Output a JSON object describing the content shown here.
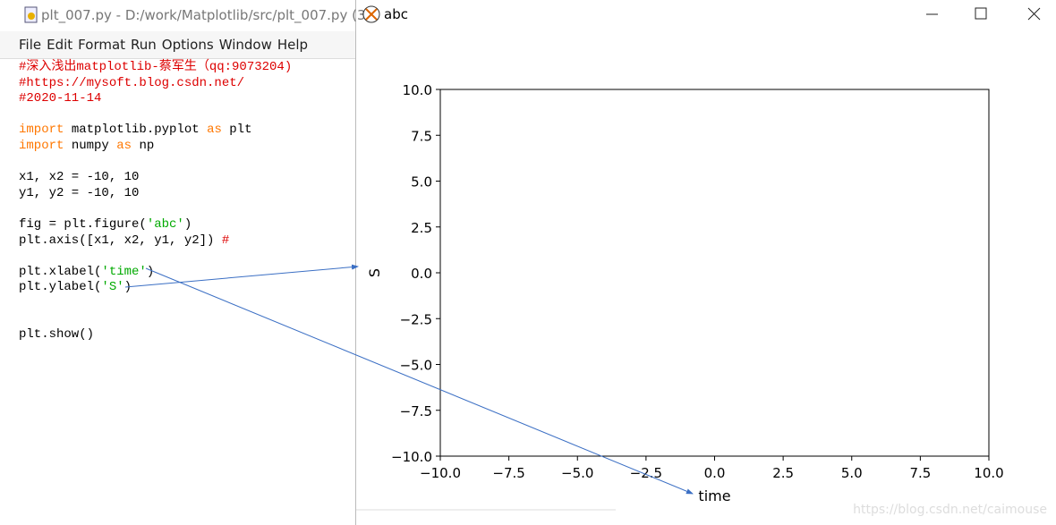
{
  "editor": {
    "title": "plt_007.py - D:/work/Matplotlib/src/plt_007.py (3",
    "menu": [
      "File",
      "Edit",
      "Format",
      "Run",
      "Options",
      "Window",
      "Help"
    ],
    "lines": [
      [
        {
          "text": "#深入浅出matplotlib-蔡军生（qq:9073204)",
          "color": "#dd0000"
        }
      ],
      [
        {
          "text": "#https://mysoft.blog.csdn.net/",
          "color": "#dd0000"
        }
      ],
      [
        {
          "text": "#2020-11-14",
          "color": "#dd0000"
        }
      ],
      null,
      [
        {
          "text": "import",
          "color": "#ff7700"
        },
        {
          "text": " matplotlib.pyplot ",
          "color": "#000000"
        },
        {
          "text": "as",
          "color": "#ff7700"
        },
        {
          "text": " plt",
          "color": "#000000"
        }
      ],
      [
        {
          "text": "import",
          "color": "#ff7700"
        },
        {
          "text": " numpy ",
          "color": "#000000"
        },
        {
          "text": "as",
          "color": "#ff7700"
        },
        {
          "text": " np",
          "color": "#000000"
        }
      ],
      null,
      [
        {
          "text": "x1, x2 = -10, 10",
          "color": "#000000"
        }
      ],
      [
        {
          "text": "y1, y2 = -10, 10",
          "color": "#000000"
        }
      ],
      null,
      [
        {
          "text": "fig = plt.figure(",
          "color": "#000000"
        },
        {
          "text": "'abc'",
          "color": "#00aa00"
        },
        {
          "text": ")",
          "color": "#000000"
        }
      ],
      [
        {
          "text": "plt.axis([x1, x2, y1, y2]) ",
          "color": "#000000"
        },
        {
          "text": "#",
          "color": "#dd0000"
        }
      ],
      null,
      [
        {
          "text": "plt.xlabel(",
          "color": "#000000"
        },
        {
          "text": "'time'",
          "color": "#00aa00"
        },
        {
          "text": ")",
          "color": "#000000"
        }
      ],
      [
        {
          "text": "plt.ylabel(",
          "color": "#000000"
        },
        {
          "text": "'S'",
          "color": "#00aa00"
        },
        {
          "text": ")",
          "color": "#000000"
        }
      ],
      null,
      null,
      [
        {
          "text": "plt.show()",
          "color": "#000000"
        }
      ]
    ]
  },
  "figure_window": {
    "title": "abc"
  },
  "chart_data": {
    "type": "line",
    "xlabel": "time",
    "ylabel": "S",
    "xlim": [
      -10,
      10
    ],
    "ylim": [
      -10,
      10
    ],
    "xticks": [
      {
        "value": -10,
        "label": "−10.0"
      },
      {
        "value": -7.5,
        "label": "−7.5"
      },
      {
        "value": -5,
        "label": "−5.0"
      },
      {
        "value": -2.5,
        "label": "−2.5"
      },
      {
        "value": 0,
        "label": "0.0"
      },
      {
        "value": 2.5,
        "label": "2.5"
      },
      {
        "value": 5,
        "label": "5.0"
      },
      {
        "value": 7.5,
        "label": "7.5"
      },
      {
        "value": 10,
        "label": "10.0"
      }
    ],
    "yticks": [
      {
        "value": -10,
        "label": "−10.0"
      },
      {
        "value": -7.5,
        "label": "−7.5"
      },
      {
        "value": -5,
        "label": "−5.0"
      },
      {
        "value": -2.5,
        "label": "−2.5"
      },
      {
        "value": 0,
        "label": "0.0"
      },
      {
        "value": 2.5,
        "label": "2.5"
      },
      {
        "value": 5,
        "label": "5.0"
      },
      {
        "value": 7.5,
        "label": "7.5"
      },
      {
        "value": 10,
        "label": "10.0"
      }
    ],
    "grid": false
  },
  "watermark": "https://blog.csdn.net/caimouse"
}
